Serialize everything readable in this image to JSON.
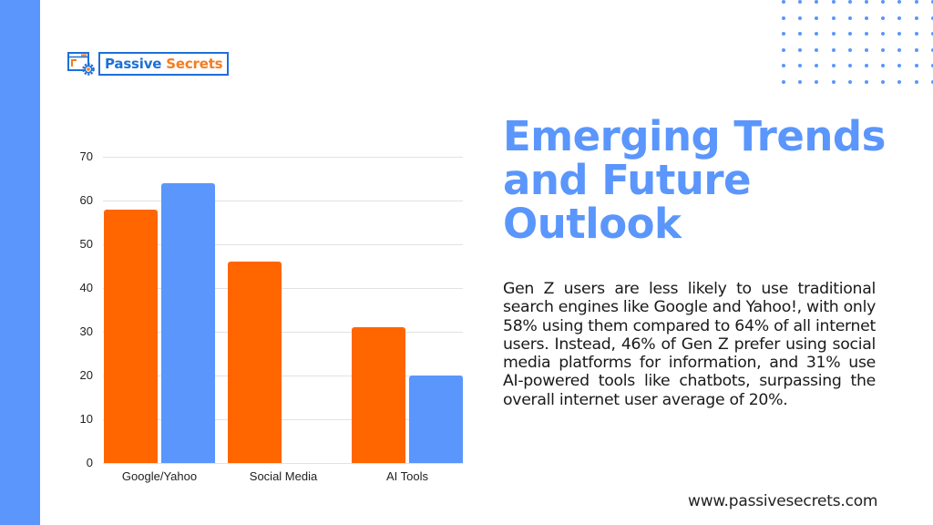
{
  "logo": {
    "word1": "Passive",
    "word2": "Secrets"
  },
  "colors": {
    "accent_blue": "#5A96FC",
    "accent_orange": "#FF6600",
    "logo_blue": "#1E6FD9",
    "logo_orange": "#F47C20"
  },
  "title": "Emerging Trends and Future Outlook",
  "body": "Gen Z users are less likely to use traditional search engines like Google and Yahoo!, with only 58% using them compared to 64% of all internet users. Instead, 46% of Gen Z prefer using social media platforms for information, and 31% use AI-powered tools like chatbots, surpassing the overall internet user average of 20%.",
  "footer": {
    "url": "www.passivesecrets.com"
  },
  "chart_data": {
    "type": "bar",
    "title": "",
    "xlabel": "",
    "ylabel": "",
    "categories": [
      "Google/Yahoo",
      "Social Media",
      "AI Tools"
    ],
    "series": [
      {
        "name": "Gen Z",
        "color": "#FF6600",
        "values": [
          58,
          46,
          31
        ]
      },
      {
        "name": "All internet users",
        "color": "#5A96FC",
        "values": [
          64,
          null,
          20
        ]
      }
    ],
    "yticks": [
      0,
      10,
      20,
      30,
      40,
      50,
      60,
      70
    ],
    "ylim": [
      0,
      70
    ],
    "grid": true,
    "legend": "none"
  }
}
